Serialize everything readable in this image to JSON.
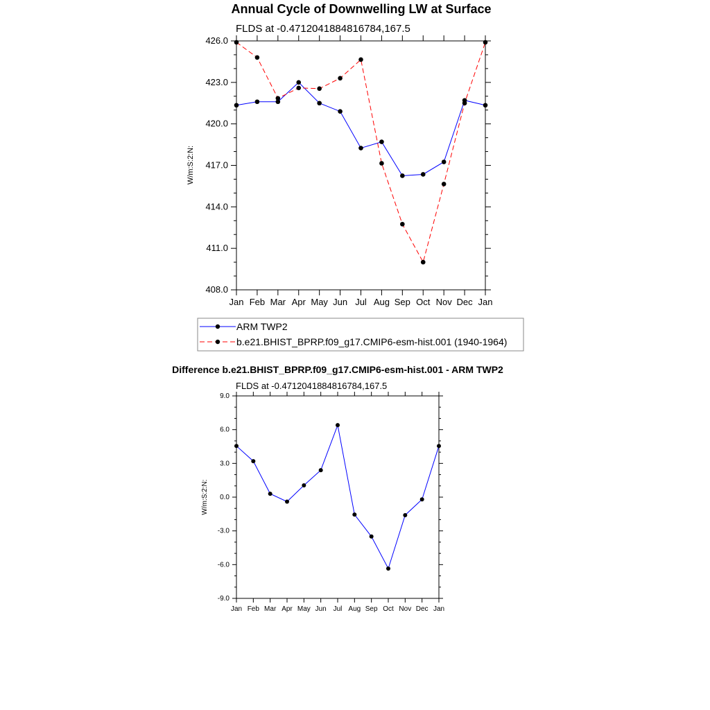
{
  "chart_data": [
    {
      "type": "line",
      "title": "Annual Cycle of Downwelling LW at Surface",
      "subtitle": "FLDS at -0.4712041884816784,167.5",
      "ylabel": "W/m:S:2:N:",
      "xlabel": "",
      "categories": [
        "Jan",
        "Feb",
        "Mar",
        "Apr",
        "May",
        "Jun",
        "Jul",
        "Aug",
        "Sep",
        "Oct",
        "Nov",
        "Dec",
        "Jan"
      ],
      "ylim": [
        408.0,
        426.0
      ],
      "yticks": [
        "408.0",
        "411.0",
        "414.0",
        "417.0",
        "420.0",
        "423.0",
        "426.0"
      ],
      "legend_position": "below",
      "series": [
        {
          "name": "ARM TWP2",
          "color": "#0000ff",
          "dash": "solid",
          "values": [
            421.35,
            421.6,
            421.6,
            423.0,
            421.5,
            420.9,
            418.25,
            418.7,
            416.25,
            416.35,
            417.25,
            421.7,
            421.35
          ]
        },
        {
          "name": "b.e21.BHIST_BPRP.f09_g17.CMIP6-esm-hist.001 (1940-1964)",
          "color": "#ff0000",
          "dash": "dashed",
          "values": [
            425.9,
            424.8,
            421.85,
            422.6,
            422.55,
            423.3,
            424.65,
            417.15,
            412.75,
            410.0,
            415.65,
            421.5,
            425.9
          ]
        }
      ]
    },
    {
      "type": "line",
      "title": "Difference b.e21.BHIST_BPRP.f09_g17.CMIP6-esm-hist.001 - ARM TWP2",
      "subtitle": "FLDS at -0.4712041884816784,167.5",
      "ylabel": "W/m:S:2:N:",
      "xlabel": "",
      "categories": [
        "Jan",
        "Feb",
        "Mar",
        "Apr",
        "May",
        "Jun",
        "Jul",
        "Aug",
        "Sep",
        "Oct",
        "Nov",
        "Dec",
        "Jan"
      ],
      "ylim": [
        -9.0,
        9.0
      ],
      "yticks": [
        "-9.0",
        "-6.0",
        "-3.0",
        "0.0",
        "3.0",
        "6.0",
        "9.0"
      ],
      "series": [
        {
          "name": "Difference",
          "color": "#0000ff",
          "dash": "solid",
          "values": [
            4.55,
            3.2,
            0.3,
            -0.4,
            1.05,
            2.4,
            6.4,
            -1.55,
            -3.5,
            -6.35,
            -1.6,
            -0.2,
            4.55
          ]
        }
      ]
    }
  ]
}
